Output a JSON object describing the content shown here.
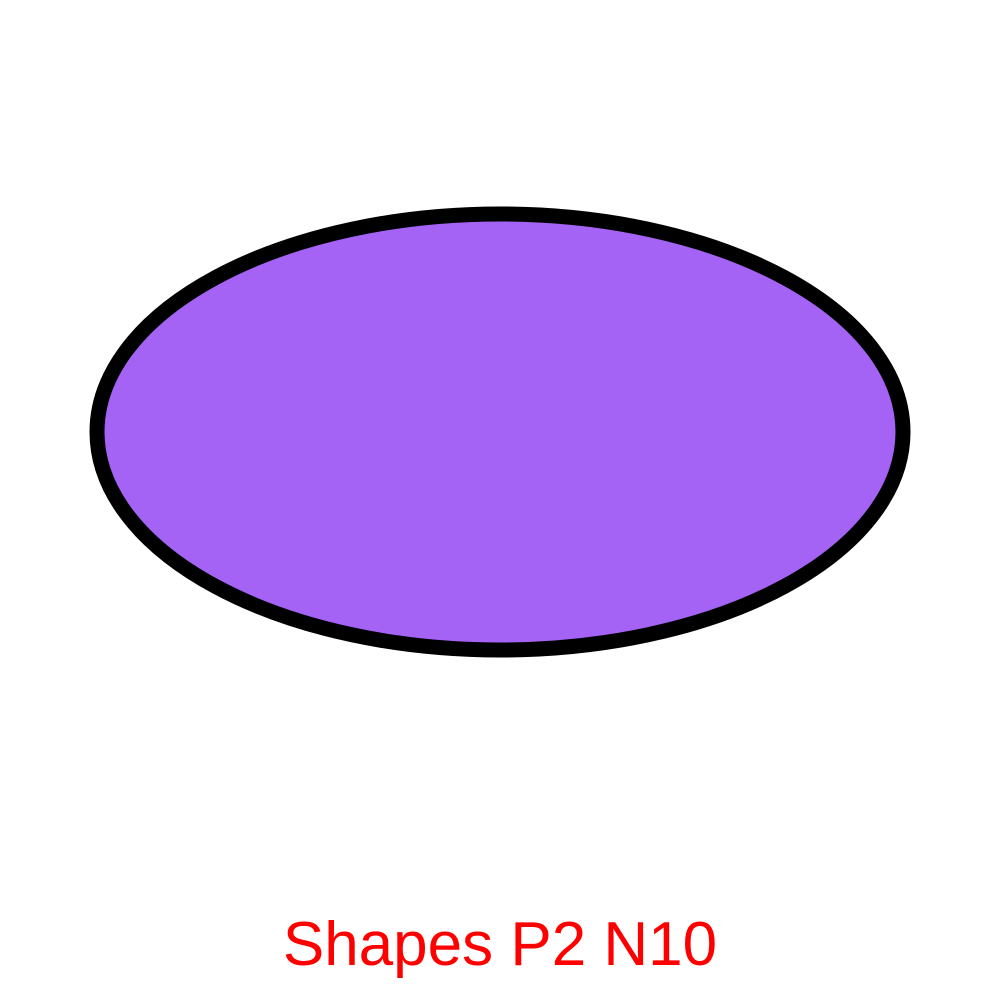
{
  "shape": {
    "kind": "ellipse",
    "fill": "#a463f5",
    "stroke": "#000000"
  },
  "caption": {
    "text": "Shapes P2 N10",
    "color": "#ff0000"
  }
}
